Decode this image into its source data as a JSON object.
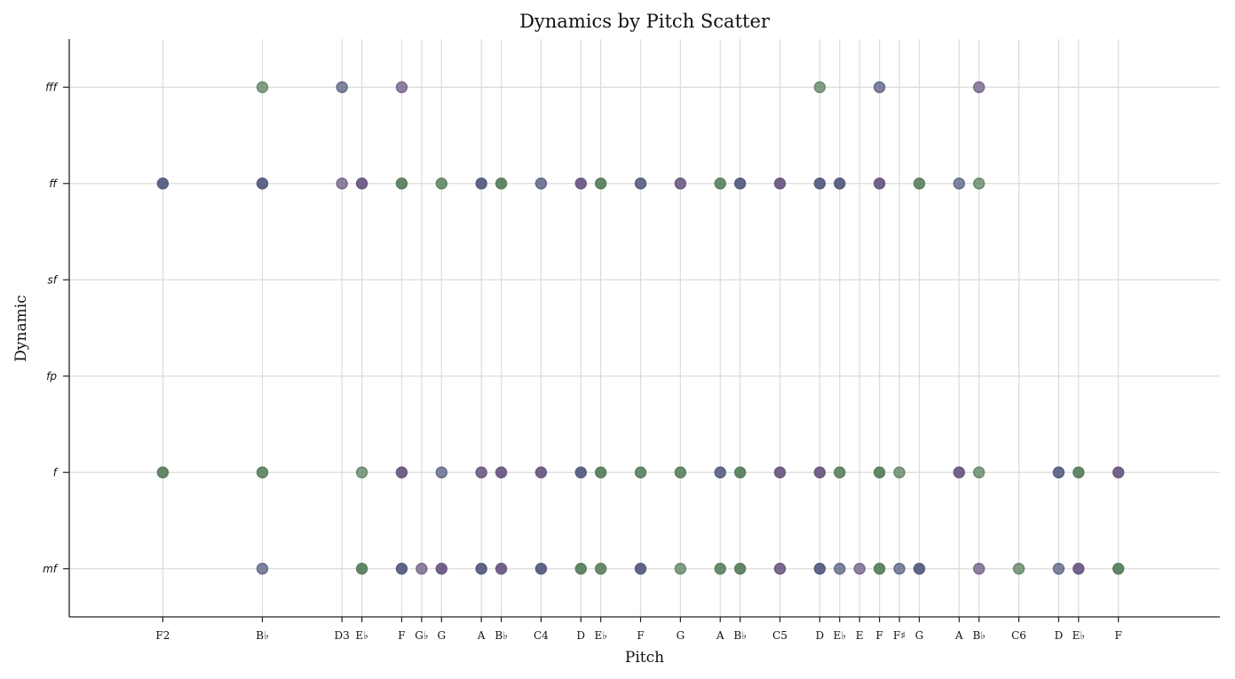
{
  "chart_data": {
    "type": "scatter",
    "title": "Dynamics by Pitch Scatter",
    "xlabel": "Pitch",
    "ylabel": "Dynamic",
    "grid": true,
    "legend": "none",
    "x_ticks": [
      {
        "pitch": 41,
        "label": "F2"
      },
      {
        "pitch": 46,
        "label": "B♭"
      },
      {
        "pitch": 50,
        "label": "D3"
      },
      {
        "pitch": 51,
        "label": "E♭"
      },
      {
        "pitch": 53,
        "label": "F"
      },
      {
        "pitch": 54,
        "label": "G♭"
      },
      {
        "pitch": 55,
        "label": "G"
      },
      {
        "pitch": 57,
        "label": "A"
      },
      {
        "pitch": 58,
        "label": "B♭"
      },
      {
        "pitch": 60,
        "label": "C4"
      },
      {
        "pitch": 62,
        "label": "D"
      },
      {
        "pitch": 63,
        "label": "E♭"
      },
      {
        "pitch": 65,
        "label": "F"
      },
      {
        "pitch": 67,
        "label": "G"
      },
      {
        "pitch": 69,
        "label": "A"
      },
      {
        "pitch": 70,
        "label": "B♭"
      },
      {
        "pitch": 72,
        "label": "C5"
      },
      {
        "pitch": 74,
        "label": "D"
      },
      {
        "pitch": 75,
        "label": "E♭"
      },
      {
        "pitch": 76,
        "label": "E"
      },
      {
        "pitch": 77,
        "label": "F"
      },
      {
        "pitch": 78,
        "label": "F♯"
      },
      {
        "pitch": 79,
        "label": "G"
      },
      {
        "pitch": 81,
        "label": "A"
      },
      {
        "pitch": 82,
        "label": "B♭"
      },
      {
        "pitch": 84,
        "label": "C6"
      },
      {
        "pitch": 86,
        "label": "D"
      },
      {
        "pitch": 87,
        "label": "E♭"
      },
      {
        "pitch": 89,
        "label": "F"
      }
    ],
    "y_categories": [
      "mf",
      "f",
      "fp",
      "sf",
      "ff",
      "fff"
    ],
    "xlim": [
      36.3,
      94.1
    ],
    "ylim": [
      -0.5,
      5.5
    ],
    "colors": {
      "green": "#5a7f5e",
      "purple": "#6b5a82",
      "slate": "#565d80"
    },
    "points": [
      {
        "x": 46,
        "y": "fff",
        "c": "green",
        "a": 0.75
      },
      {
        "x": 50,
        "y": "fff",
        "c": "slate",
        "a": 0.75
      },
      {
        "x": 53,
        "y": "fff",
        "c": "purple",
        "a": 0.75
      },
      {
        "x": 74,
        "y": "fff",
        "c": "green",
        "a": 0.75
      },
      {
        "x": 77,
        "y": "fff",
        "c": "slate",
        "a": 0.75
      },
      {
        "x": 82,
        "y": "fff",
        "c": "purple",
        "a": 0.75
      },
      {
        "x": 41,
        "y": "ff",
        "c": "slate",
        "a": 0.95
      },
      {
        "x": 46,
        "y": "ff",
        "c": "slate",
        "a": 0.95
      },
      {
        "x": 50,
        "y": "ff",
        "c": "purple",
        "a": 0.75
      },
      {
        "x": 51,
        "y": "ff",
        "c": "purple",
        "a": 0.95
      },
      {
        "x": 53,
        "y": "ff",
        "c": "green",
        "a": 0.95
      },
      {
        "x": 55,
        "y": "ff",
        "c": "green",
        "a": 0.85
      },
      {
        "x": 57,
        "y": "ff",
        "c": "slate",
        "a": 0.95
      },
      {
        "x": 58,
        "y": "ff",
        "c": "green",
        "a": 0.95
      },
      {
        "x": 60,
        "y": "ff",
        "c": "slate",
        "a": 0.8
      },
      {
        "x": 62,
        "y": "ff",
        "c": "purple",
        "a": 0.95
      },
      {
        "x": 63,
        "y": "ff",
        "c": "green",
        "a": 0.95
      },
      {
        "x": 65,
        "y": "ff",
        "c": "slate",
        "a": 0.9
      },
      {
        "x": 67,
        "y": "ff",
        "c": "purple",
        "a": 0.9
      },
      {
        "x": 69,
        "y": "ff",
        "c": "green",
        "a": 0.9
      },
      {
        "x": 70,
        "y": "ff",
        "c": "slate",
        "a": 0.95
      },
      {
        "x": 72,
        "y": "ff",
        "c": "purple",
        "a": 0.95
      },
      {
        "x": 74,
        "y": "ff",
        "c": "slate",
        "a": 0.95
      },
      {
        "x": 75,
        "y": "ff",
        "c": "slate",
        "a": 0.95
      },
      {
        "x": 77,
        "y": "ff",
        "c": "purple",
        "a": 0.95
      },
      {
        "x": 79,
        "y": "ff",
        "c": "green",
        "a": 0.9
      },
      {
        "x": 81,
        "y": "ff",
        "c": "slate",
        "a": 0.75
      },
      {
        "x": 82,
        "y": "ff",
        "c": "green",
        "a": 0.75
      },
      {
        "x": 41,
        "y": "f",
        "c": "green",
        "a": 0.95
      },
      {
        "x": 46,
        "y": "f",
        "c": "green",
        "a": 0.9
      },
      {
        "x": 51,
        "y": "f",
        "c": "green",
        "a": 0.75
      },
      {
        "x": 53,
        "y": "f",
        "c": "purple",
        "a": 0.95
      },
      {
        "x": 55,
        "y": "f",
        "c": "slate",
        "a": 0.75
      },
      {
        "x": 57,
        "y": "f",
        "c": "purple",
        "a": 0.9
      },
      {
        "x": 58,
        "y": "f",
        "c": "purple",
        "a": 0.95
      },
      {
        "x": 60,
        "y": "f",
        "c": "purple",
        "a": 0.95
      },
      {
        "x": 62,
        "y": "f",
        "c": "slate",
        "a": 0.95
      },
      {
        "x": 63,
        "y": "f",
        "c": "green",
        "a": 0.95
      },
      {
        "x": 65,
        "y": "f",
        "c": "green",
        "a": 0.9
      },
      {
        "x": 67,
        "y": "f",
        "c": "green",
        "a": 0.9
      },
      {
        "x": 69,
        "y": "f",
        "c": "slate",
        "a": 0.9
      },
      {
        "x": 70,
        "y": "f",
        "c": "green",
        "a": 0.95
      },
      {
        "x": 72,
        "y": "f",
        "c": "purple",
        "a": 0.95
      },
      {
        "x": 74,
        "y": "f",
        "c": "purple",
        "a": 0.95
      },
      {
        "x": 75,
        "y": "f",
        "c": "green",
        "a": 0.9
      },
      {
        "x": 77,
        "y": "f",
        "c": "green",
        "a": 0.95
      },
      {
        "x": 78,
        "y": "f",
        "c": "green",
        "a": 0.75
      },
      {
        "x": 81,
        "y": "f",
        "c": "purple",
        "a": 0.95
      },
      {
        "x": 82,
        "y": "f",
        "c": "green",
        "a": 0.75
      },
      {
        "x": 86,
        "y": "f",
        "c": "slate",
        "a": 0.9
      },
      {
        "x": 87,
        "y": "f",
        "c": "green",
        "a": 0.95
      },
      {
        "x": 89,
        "y": "f",
        "c": "purple",
        "a": 0.95
      },
      {
        "x": 46,
        "y": "mf",
        "c": "slate",
        "a": 0.75
      },
      {
        "x": 51,
        "y": "mf",
        "c": "green",
        "a": 0.95
      },
      {
        "x": 53,
        "y": "mf",
        "c": "slate",
        "a": 0.95
      },
      {
        "x": 54,
        "y": "mf",
        "c": "purple",
        "a": 0.75
      },
      {
        "x": 55,
        "y": "mf",
        "c": "purple",
        "a": 0.95
      },
      {
        "x": 57,
        "y": "mf",
        "c": "slate",
        "a": 0.95
      },
      {
        "x": 58,
        "y": "mf",
        "c": "purple",
        "a": 0.95
      },
      {
        "x": 60,
        "y": "mf",
        "c": "slate",
        "a": 0.95
      },
      {
        "x": 62,
        "y": "mf",
        "c": "green",
        "a": 0.95
      },
      {
        "x": 63,
        "y": "mf",
        "c": "green",
        "a": 0.9
      },
      {
        "x": 65,
        "y": "mf",
        "c": "slate",
        "a": 0.95
      },
      {
        "x": 67,
        "y": "mf",
        "c": "green",
        "a": 0.75
      },
      {
        "x": 69,
        "y": "mf",
        "c": "green",
        "a": 0.9
      },
      {
        "x": 70,
        "y": "mf",
        "c": "green",
        "a": 0.95
      },
      {
        "x": 72,
        "y": "mf",
        "c": "purple",
        "a": 0.9
      },
      {
        "x": 74,
        "y": "mf",
        "c": "slate",
        "a": 0.95
      },
      {
        "x": 75,
        "y": "mf",
        "c": "slate",
        "a": 0.75
      },
      {
        "x": 76,
        "y": "mf",
        "c": "purple",
        "a": 0.75
      },
      {
        "x": 77,
        "y": "mf",
        "c": "green",
        "a": 0.95
      },
      {
        "x": 78,
        "y": "mf",
        "c": "slate",
        "a": 0.75
      },
      {
        "x": 79,
        "y": "mf",
        "c": "slate",
        "a": 0.95
      },
      {
        "x": 82,
        "y": "mf",
        "c": "purple",
        "a": 0.75
      },
      {
        "x": 84,
        "y": "mf",
        "c": "green",
        "a": 0.75
      },
      {
        "x": 86,
        "y": "mf",
        "c": "slate",
        "a": 0.75
      },
      {
        "x": 87,
        "y": "mf",
        "c": "purple",
        "a": 0.95
      },
      {
        "x": 89,
        "y": "mf",
        "c": "green",
        "a": 0.95
      }
    ]
  }
}
